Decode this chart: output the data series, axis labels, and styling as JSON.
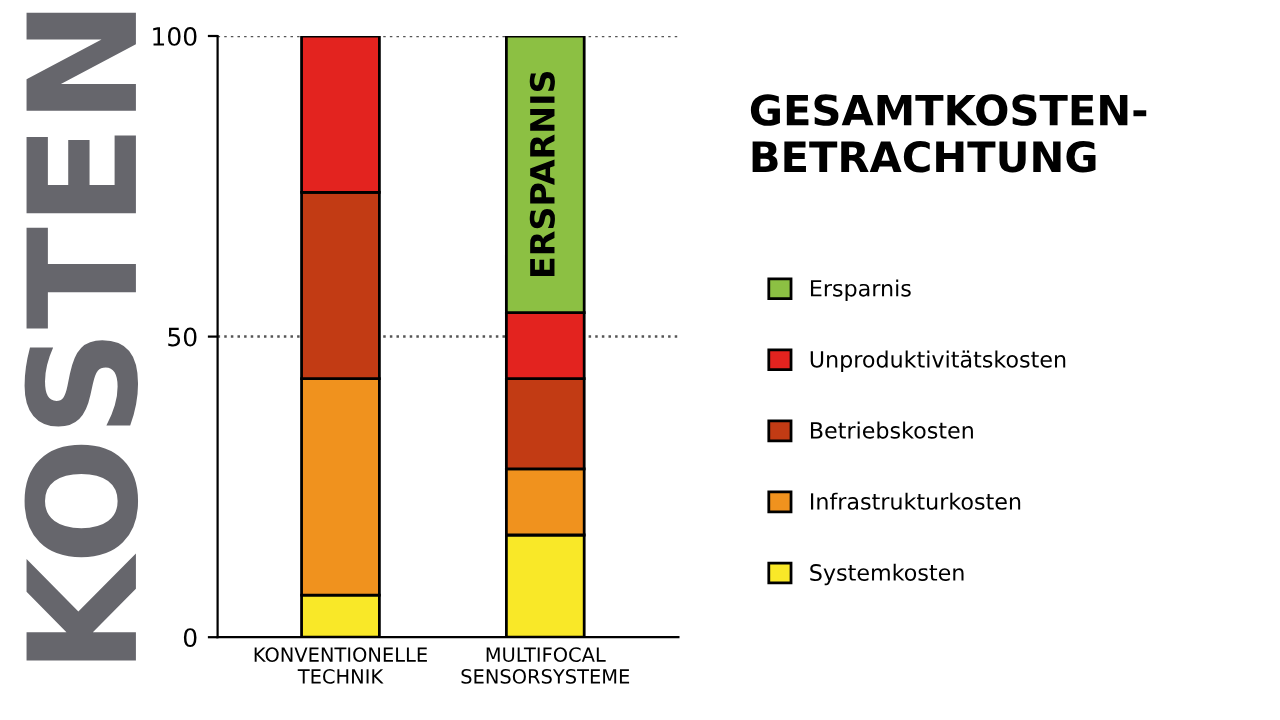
{
  "chart_data": {
    "type": "bar",
    "stacked": true,
    "title": "GESAMTKOSTEN-\nBETRACHTUNG",
    "ylabel": "KOSTEN",
    "categories": [
      "KONVENTIONELLE\nTECHNIK",
      "MULTIFOCAL\nSENSORSYSTEME"
    ],
    "series": [
      {
        "name": "Systemkosten",
        "color": "#f9e828",
        "values": [
          7,
          17
        ]
      },
      {
        "name": "Infrastrukturkosten",
        "color": "#f0921e",
        "values": [
          36,
          11
        ]
      },
      {
        "name": "Betriebskosten",
        "color": "#c23b14",
        "values": [
          31,
          15
        ]
      },
      {
        "name": "Unproduktivitätskosten",
        "color": "#e3231f",
        "values": [
          26,
          11
        ]
      },
      {
        "name": "Ersparnis",
        "color": "#8cc043",
        "values": [
          null,
          46
        ]
      }
    ],
    "annotations": [
      "ERSPARNIS"
    ],
    "ylim": [
      0,
      100
    ],
    "yticks": [
      0,
      50,
      100
    ],
    "grid": "y",
    "legend": "right"
  }
}
